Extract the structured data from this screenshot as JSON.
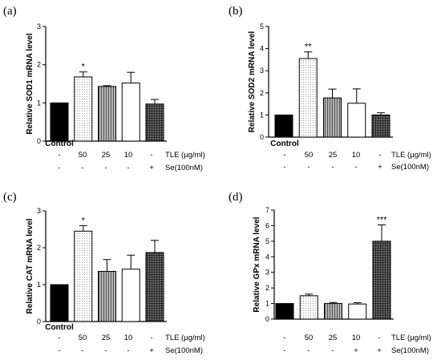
{
  "colors": {
    "control": "#000000",
    "tle_50": "#e6e6e6",
    "tle_25": "#8c8c8c",
    "tle_10": "#ffffff",
    "se": "#4a4a4a",
    "outline": "#000000"
  },
  "chart_data": [
    {
      "type": "bar",
      "panel_label": "(a)",
      "ylabel": "Relative SOD1 mRNA level",
      "ylim": [
        0,
        3
      ],
      "yticks": [
        0,
        1,
        2,
        3
      ],
      "categories": [
        "Control",
        "TLE 50",
        "TLE 25",
        "TLE 10",
        "Se"
      ],
      "values": [
        1.0,
        1.68,
        1.43,
        1.52,
        0.97
      ],
      "errors": [
        0.0,
        0.13,
        0.02,
        0.28,
        0.12
      ],
      "significance": [
        "",
        "*",
        "",
        "",
        ""
      ],
      "control_label": "Control",
      "tle_row": [
        "-",
        "50",
        "25",
        "10",
        "-"
      ],
      "tle_label": "TLE (µg/ml)",
      "se_row": [
        "-",
        "-",
        "-",
        "-",
        "+"
      ],
      "se_label": "Se(100nM)"
    },
    {
      "type": "bar",
      "panel_label": "(b)",
      "ylabel": "Relative SOD2 mRNA level",
      "ylim": [
        0,
        5
      ],
      "yticks": [
        0,
        1,
        2,
        3,
        4,
        5
      ],
      "categories": [
        "Control",
        "TLE 50",
        "TLE 25",
        "TLE 10",
        "Se"
      ],
      "values": [
        1.0,
        3.55,
        1.77,
        1.53,
        1.0
      ],
      "errors": [
        0.0,
        0.3,
        0.4,
        0.65,
        0.1
      ],
      "significance": [
        "",
        "**",
        "",
        "",
        ""
      ],
      "control_label": "Control",
      "tle_row": [
        "-",
        "50",
        "25",
        "10",
        "-"
      ],
      "tle_label": "TLE (µg/ml)",
      "se_row": [
        "-",
        "-",
        "-",
        "-",
        "+"
      ],
      "se_label": "Se(100nM)"
    },
    {
      "type": "bar",
      "panel_label": "(c)",
      "ylabel": "Relative CAT mRNA level",
      "ylim": [
        0,
        3
      ],
      "yticks": [
        0,
        1,
        2,
        3
      ],
      "categories": [
        "Control",
        "TLE 50",
        "TLE 25",
        "TLE 10",
        "Se"
      ],
      "values": [
        1.0,
        2.45,
        1.36,
        1.42,
        1.87
      ],
      "errors": [
        0.0,
        0.15,
        0.32,
        0.38,
        0.33
      ],
      "significance": [
        "",
        "*",
        "",
        "",
        ""
      ],
      "control_label": "Control",
      "tle_row": [
        "-",
        "50",
        "25",
        "10",
        "-"
      ],
      "tle_label": "TLE (µg/ml)",
      "se_row": [
        "-",
        "-",
        "-",
        "-",
        "+"
      ],
      "se_label": "Se(100nM)"
    },
    {
      "type": "bar",
      "panel_label": "(d)",
      "ylabel": "Relative GPx mRNA level",
      "ylim": [
        0,
        7
      ],
      "yticks": [
        0,
        1,
        2,
        3,
        4,
        5,
        6,
        7
      ],
      "categories": [
        "Control",
        "TLE 50",
        "TLE 25",
        "TLE 10",
        "Se"
      ],
      "values": [
        1.0,
        1.5,
        1.0,
        0.97,
        5.0
      ],
      "errors": [
        0.0,
        0.1,
        0.07,
        0.08,
        1.05
      ],
      "significance": [
        "",
        "",
        "",
        "",
        "***"
      ],
      "control_label": "",
      "tle_row": [
        "-",
        "50",
        "25",
        "10",
        "-"
      ],
      "tle_label": "TLE (µg/ml)",
      "se_row": [
        "-",
        "-",
        "-",
        "+",
        "+"
      ],
      "se_label": "Se(100nM)"
    }
  ]
}
